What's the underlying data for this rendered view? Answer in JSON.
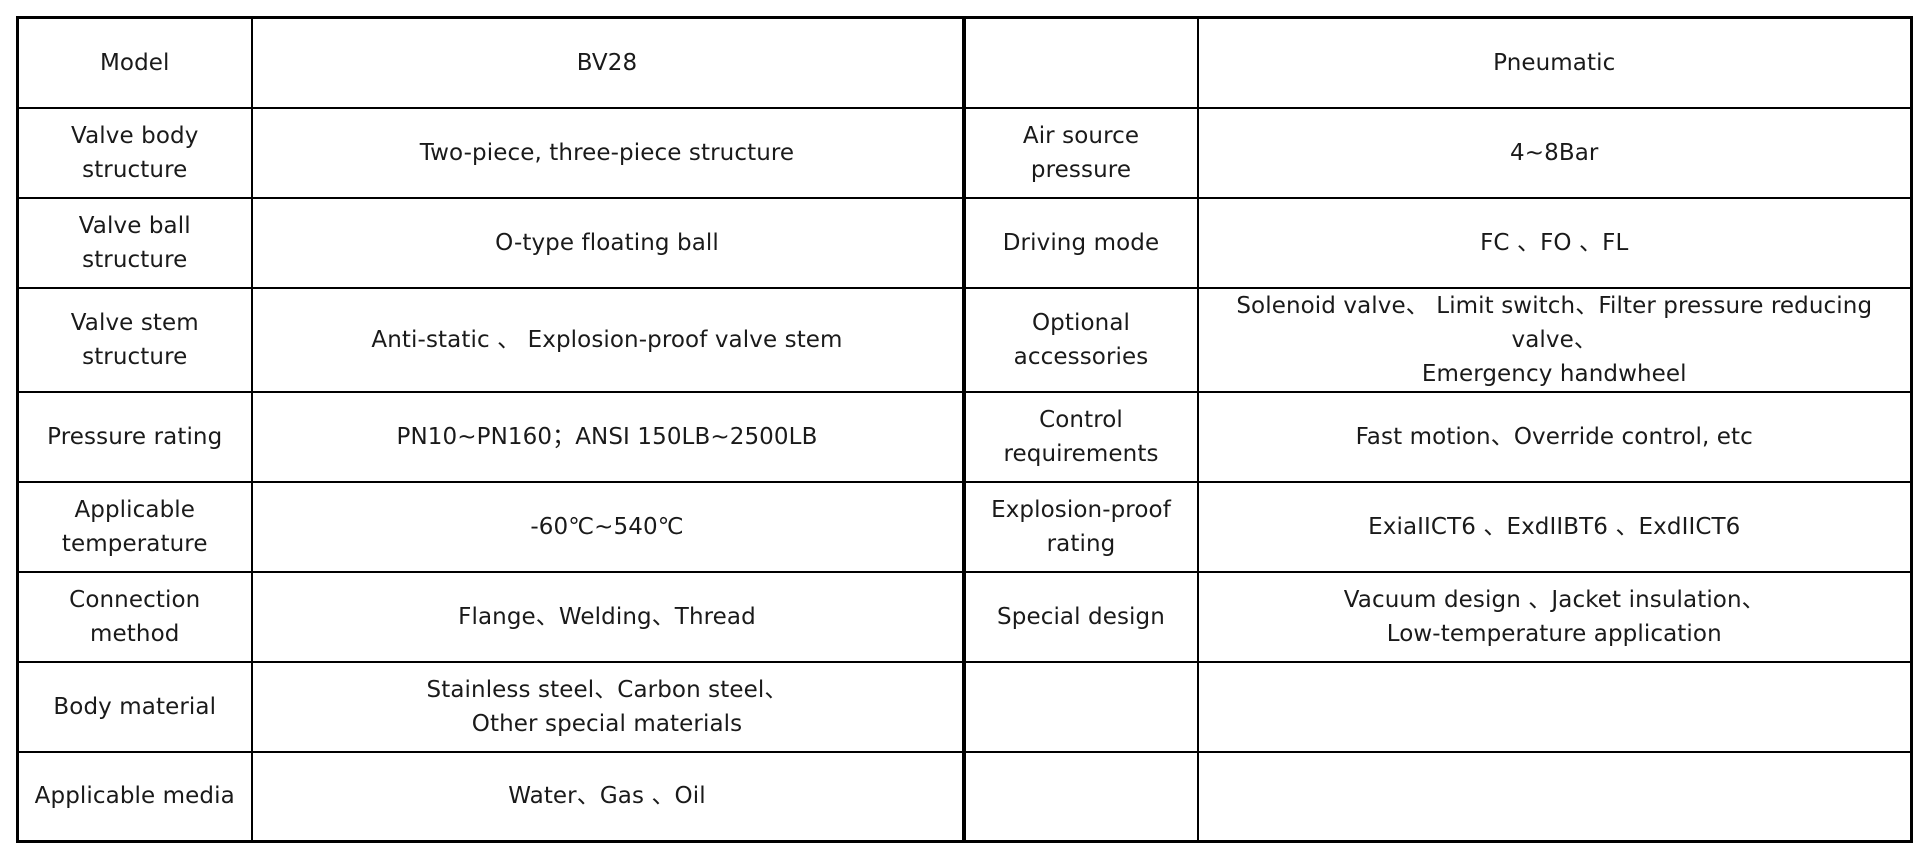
{
  "table": {
    "rows": [
      {
        "label_left": "Model",
        "value_left": "BV28",
        "label_right": "",
        "value_right": "Pneumatic"
      },
      {
        "label_left": "Valve body\nstructure",
        "value_left": "Two-piece, three-piece structure",
        "label_right": "Air source pressure",
        "value_right": "4~8Bar"
      },
      {
        "label_left": "Valve ball structure",
        "value_left": "O-type floating ball",
        "label_right": "Driving mode",
        "value_right": "FC 、FO 、FL"
      },
      {
        "label_left": "Valve stem\nstructure",
        "value_left": "Anti-static 、 Explosion-proof valve stem",
        "label_right": "Optional\naccessories",
        "value_right": "Solenoid valve、 Limit switch、Filter pressure reducing valve、\nEmergency handwheel"
      },
      {
        "label_left": "Pressure rating",
        "value_left": "PN10~PN160；ANSI 150LB~2500LB",
        "label_right": "Control\nrequirements",
        "value_right": "Fast motion、Override control, etc"
      },
      {
        "label_left": "Applicable\ntemperature",
        "value_left": "-60℃~540℃",
        "label_right": "Explosion-proof\nrating",
        "value_right": "ExiaIICT6 、ExdIIBT6 、ExdIICT6"
      },
      {
        "label_left": "Connection method",
        "value_left": "Flange、Welding、Thread",
        "label_right": "Special design",
        "value_right": "Vacuum design 、Jacket insulation、\nLow-temperature application"
      },
      {
        "label_left": "Body material",
        "value_left": "Stainless steel、Carbon steel、\nOther special materials",
        "label_right": "",
        "value_right": ""
      },
      {
        "label_left": "Applicable media",
        "value_left": "Water、Gas 、Oil",
        "label_right": "",
        "value_right": ""
      }
    ]
  }
}
